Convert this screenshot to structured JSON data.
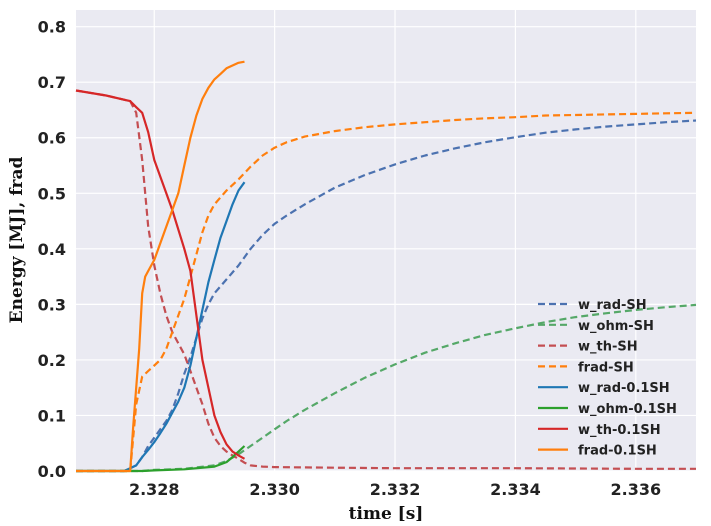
{
  "chart_data": {
    "type": "line",
    "xlabel": "time [s]",
    "ylabel": "Energy [MJ], frad",
    "xlim": [
      2.3267,
      2.337
    ],
    "ylim": [
      0.0,
      0.83
    ],
    "xticks": [
      2.328,
      2.33,
      2.332,
      2.334,
      2.336
    ],
    "xtick_labels": [
      "2.328",
      "2.330",
      "2.332",
      "2.334",
      "2.336"
    ],
    "yticks": [
      0.0,
      0.1,
      0.2,
      0.3,
      0.4,
      0.5,
      0.6,
      0.7,
      0.8
    ],
    "ytick_labels": [
      "0.0",
      "0.1",
      "0.2",
      "0.3",
      "0.4",
      "0.5",
      "0.6",
      "0.7",
      "0.8"
    ],
    "grid": true,
    "background": "#eaeaf2",
    "legend_position": "lower right",
    "series": [
      {
        "name": "w_rad-SH",
        "color": "#4c72b0",
        "style": "dashed",
        "x": [
          2.3267,
          2.3275,
          2.3277,
          2.3278,
          2.3279,
          2.328,
          2.3281,
          2.3282,
          2.3283,
          2.3284,
          2.3285,
          2.3286,
          2.3287,
          2.3288,
          2.3289,
          2.329,
          2.3292,
          2.3294,
          2.3296,
          2.3298,
          2.33,
          2.3302,
          2.3305,
          2.331,
          2.3315,
          2.332,
          2.3325,
          2.333,
          2.3335,
          2.334,
          2.3345,
          2.335,
          2.3355,
          2.336,
          2.3365,
          2.337
        ],
        "y": [
          0.0,
          0.0,
          0.01,
          0.025,
          0.045,
          0.06,
          0.075,
          0.09,
          0.11,
          0.14,
          0.175,
          0.205,
          0.24,
          0.275,
          0.3,
          0.32,
          0.345,
          0.37,
          0.4,
          0.425,
          0.445,
          0.46,
          0.48,
          0.51,
          0.533,
          0.552,
          0.568,
          0.581,
          0.592,
          0.601,
          0.609,
          0.615,
          0.62,
          0.624,
          0.628,
          0.631
        ]
      },
      {
        "name": "w_ohm-SH",
        "color": "#55a868",
        "style": "dashed",
        "x": [
          2.3267,
          2.3278,
          2.328,
          2.3285,
          2.329,
          2.3292,
          2.3294,
          2.3296,
          2.3298,
          2.33,
          2.3302,
          2.3305,
          2.331,
          2.3315,
          2.332,
          2.3325,
          2.333,
          2.3335,
          2.334,
          2.3345,
          2.335,
          2.3355,
          2.336,
          2.3365,
          2.337
        ],
        "y": [
          0.0,
          0.0,
          0.002,
          0.004,
          0.01,
          0.018,
          0.03,
          0.045,
          0.06,
          0.075,
          0.09,
          0.11,
          0.14,
          0.168,
          0.192,
          0.213,
          0.23,
          0.245,
          0.257,
          0.268,
          0.277,
          0.284,
          0.29,
          0.295,
          0.299
        ]
      },
      {
        "name": "w_th-SH",
        "color": "#c44e52",
        "style": "dashed",
        "x": [
          2.3267,
          2.3272,
          2.3276,
          2.3277,
          2.3278,
          2.3279,
          2.328,
          2.3281,
          2.3282,
          2.3283,
          2.3284,
          2.3285,
          2.3286,
          2.3287,
          2.3288,
          2.3289,
          2.329,
          2.3291,
          2.3292,
          2.3293,
          2.3294,
          2.3295,
          2.3296,
          2.3298,
          2.33,
          2.331,
          2.332,
          2.334,
          2.336,
          2.337
        ],
        "y": [
          0.685,
          0.676,
          0.666,
          0.645,
          0.56,
          0.44,
          0.37,
          0.32,
          0.28,
          0.25,
          0.23,
          0.21,
          0.18,
          0.15,
          0.12,
          0.085,
          0.06,
          0.045,
          0.035,
          0.028,
          0.022,
          0.015,
          0.01,
          0.008,
          0.007,
          0.006,
          0.005,
          0.005,
          0.004,
          0.004
        ]
      },
      {
        "name": "frad-SH",
        "color": "#ff7f0e",
        "style": "dashed",
        "x": [
          2.3267,
          2.3276,
          2.3277,
          2.3278,
          2.3279,
          2.328,
          2.3281,
          2.3282,
          2.3283,
          2.3284,
          2.3285,
          2.3286,
          2.3287,
          2.3288,
          2.3289,
          2.329,
          2.3292,
          2.3294,
          2.3296,
          2.3298,
          2.33,
          2.3302,
          2.3305,
          2.331,
          2.3315,
          2.332,
          2.3325,
          2.333,
          2.3335,
          2.334,
          2.3345,
          2.335,
          2.3355,
          2.336,
          2.3365,
          2.337
        ],
        "y": [
          0.0,
          0.0,
          0.12,
          0.17,
          0.18,
          0.19,
          0.2,
          0.22,
          0.25,
          0.28,
          0.31,
          0.35,
          0.39,
          0.43,
          0.46,
          0.48,
          0.505,
          0.525,
          0.548,
          0.568,
          0.582,
          0.592,
          0.602,
          0.612,
          0.619,
          0.624,
          0.628,
          0.632,
          0.635,
          0.637,
          0.64,
          0.641,
          0.642,
          0.643,
          0.644,
          0.645
        ]
      },
      {
        "name": "w_rad-0.1SH",
        "color": "#1f77b4",
        "style": "solid",
        "x": [
          2.3267,
          2.3275,
          2.3277,
          2.3278,
          2.3279,
          2.328,
          2.3281,
          2.3282,
          2.3283,
          2.3284,
          2.3285,
          2.3286,
          2.3287,
          2.3288,
          2.3289,
          2.329,
          2.3291,
          2.3292,
          2.3293,
          2.3294,
          2.3295
        ],
        "y": [
          0.0,
          0.0,
          0.01,
          0.025,
          0.038,
          0.052,
          0.068,
          0.085,
          0.105,
          0.125,
          0.15,
          0.19,
          0.24,
          0.29,
          0.34,
          0.38,
          0.42,
          0.45,
          0.48,
          0.505,
          0.52
        ]
      },
      {
        "name": "w_ohm-0.1SH",
        "color": "#2ca02c",
        "style": "solid",
        "x": [
          2.3267,
          2.3278,
          2.328,
          2.3285,
          2.329,
          2.3292,
          2.3293,
          2.3294,
          2.3295
        ],
        "y": [
          0.0,
          0.0,
          0.001,
          0.003,
          0.008,
          0.016,
          0.025,
          0.035,
          0.045
        ]
      },
      {
        "name": "w_th-0.1SH",
        "color": "#d62728",
        "style": "solid",
        "x": [
          2.3267,
          2.3272,
          2.3276,
          2.3277,
          2.3278,
          2.3279,
          2.328,
          2.3281,
          2.3282,
          2.3283,
          2.3284,
          2.3285,
          2.3286,
          2.3287,
          2.3288,
          2.3289,
          2.329,
          2.3291,
          2.3292,
          2.3293,
          2.3294,
          2.3295
        ],
        "y": [
          0.685,
          0.676,
          0.666,
          0.655,
          0.645,
          0.61,
          0.56,
          0.53,
          0.5,
          0.47,
          0.435,
          0.4,
          0.36,
          0.28,
          0.2,
          0.15,
          0.1,
          0.07,
          0.048,
          0.035,
          0.028,
          0.022
        ]
      },
      {
        "name": "frad-0.1SH",
        "color": "#ff7f0e",
        "style": "solid",
        "x": [
          2.3267,
          2.3276,
          2.32765,
          2.3277,
          2.32775,
          2.3278,
          2.32785,
          2.3279,
          2.328,
          2.3281,
          2.3282,
          2.3283,
          2.3284,
          2.3285,
          2.3286,
          2.3287,
          2.3288,
          2.3289,
          2.329,
          2.3291,
          2.3292,
          2.3293,
          2.3294,
          2.3295
        ],
        "y": [
          0.0,
          0.0,
          0.08,
          0.15,
          0.22,
          0.32,
          0.35,
          0.36,
          0.38,
          0.41,
          0.44,
          0.47,
          0.5,
          0.55,
          0.6,
          0.64,
          0.67,
          0.69,
          0.705,
          0.715,
          0.725,
          0.73,
          0.735,
          0.737
        ]
      }
    ]
  }
}
